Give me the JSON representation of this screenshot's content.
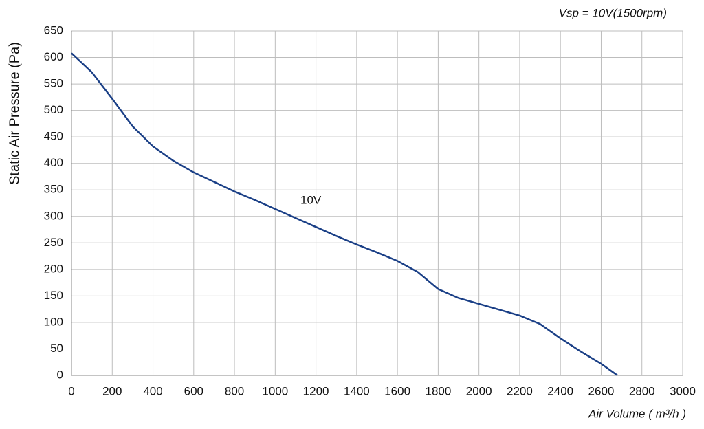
{
  "chart_data": {
    "type": "line",
    "title": "Vsp = 10V(1500rpm)",
    "x_label": "Air Volume ( m³/h )",
    "y_label": "Static Air Pressure  (Pa)",
    "x": [
      0,
      100,
      200,
      300,
      400,
      500,
      600,
      700,
      800,
      900,
      1000,
      1100,
      1200,
      1300,
      1400,
      1500,
      1600,
      1700,
      1800,
      1900,
      2000,
      2100,
      2200,
      2300,
      2400,
      2500,
      2600,
      2680
    ],
    "series": [
      {
        "name": "10V",
        "color": "#1a3f86",
        "values": [
          608,
          572,
          522,
          470,
          432,
          405,
          383,
          365,
          347,
          331,
          314,
          297,
          280,
          263,
          247,
          232,
          216,
          195,
          163,
          146,
          135,
          124,
          113,
          97,
          70,
          45,
          22,
          0
        ]
      }
    ],
    "xlim": [
      0,
      3000
    ],
    "xticks": [
      0,
      200,
      400,
      600,
      800,
      1000,
      1200,
      1400,
      1600,
      1800,
      2000,
      2200,
      2400,
      2600,
      2800,
      3000
    ],
    "ylim": [
      0,
      650
    ],
    "yticks": [
      0,
      50,
      100,
      150,
      200,
      250,
      300,
      350,
      400,
      450,
      500,
      550,
      600,
      650
    ],
    "grid": true
  }
}
